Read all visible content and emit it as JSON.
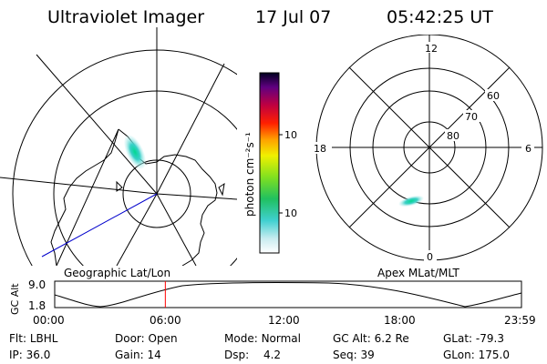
{
  "header": {
    "title": "Ultraviolet Imager",
    "date": "17 Jul 07",
    "time": "05:42:25 UT"
  },
  "maps": {
    "left_label": "Geographic Lat/Lon",
    "right_label": "Apex MLat/MLT"
  },
  "polar": {
    "mlt_labels": [
      "12",
      "18",
      "6",
      "0"
    ],
    "lat_labels": [
      "60",
      "70",
      "80"
    ]
  },
  "colorbar": {
    "unit_label": "photon cm⁻²s⁻¹",
    "ticks": [
      "100",
      "10"
    ]
  },
  "altitude_plot": {
    "y_axis_label": "GC Alt",
    "y_ticks": [
      "9.0",
      "1.8"
    ],
    "x_ticks": [
      "00:00",
      "06:00",
      "12:00",
      "18:00",
      "23:59"
    ],
    "current_time_fraction": 0.237
  },
  "info": {
    "row1": [
      {
        "key": "Flt:",
        "value": "LBHL"
      },
      {
        "key": "Door:",
        "value": "Open"
      },
      {
        "key": "Mode:",
        "value": "Normal"
      },
      {
        "key": "GC Alt:",
        "value": "6.2 Re"
      },
      {
        "key": "GLat:",
        "value": "-79.3"
      }
    ],
    "row2": [
      {
        "key": "IP:",
        "value": "36.0"
      },
      {
        "key": "Gain:",
        "value": "14"
      },
      {
        "key": "Dsp:",
        "value": "4.2"
      },
      {
        "key": "Seq:",
        "value": "39"
      },
      {
        "key": "GLon:",
        "value": "175.0"
      }
    ]
  },
  "colors": {
    "aurora": "#3fd4c4",
    "track": "#0000cc",
    "time_marker": "#ff0000"
  }
}
